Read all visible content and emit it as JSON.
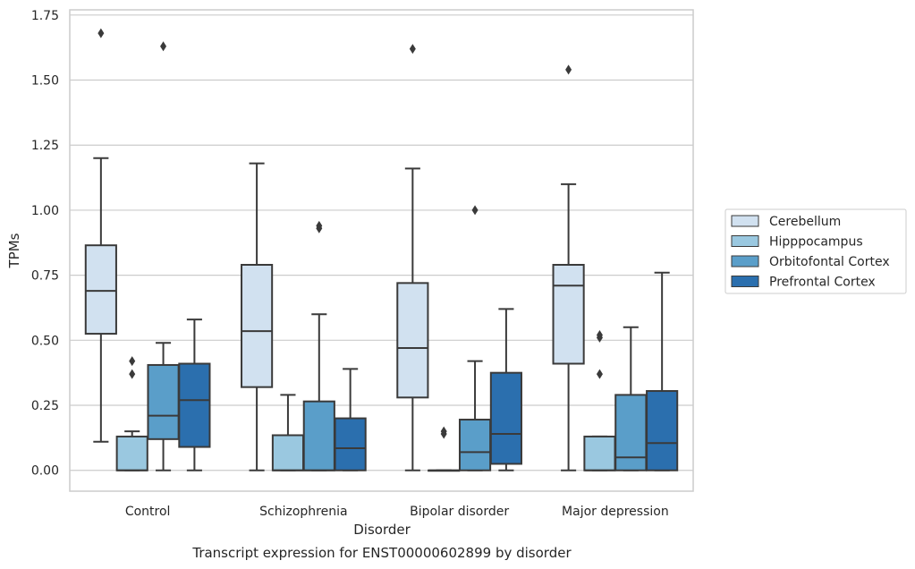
{
  "chart_data": {
    "type": "boxplot",
    "title": "",
    "caption": "Transcript expression for ENST00000602899 by disorder",
    "xlabel": "Disorder",
    "ylabel": "TPMs",
    "ylim": [
      -0.08,
      1.77
    ],
    "yticks": [
      0.0,
      0.25,
      0.5,
      0.75,
      1.0,
      1.25,
      1.5,
      1.75
    ],
    "ytick_labels": [
      "0.00",
      "0.25",
      "0.50",
      "0.75",
      "1.00",
      "1.25",
      "1.50",
      "1.75"
    ],
    "categories": [
      "Control",
      "Schizophrenia",
      "Bipolar disorder",
      "Major depression"
    ],
    "grid": "horizontal",
    "legend_position": "right",
    "series": [
      {
        "name": "Cerebellum",
        "color": "#d1e1f0",
        "boxes": [
          {
            "whislo": 0.11,
            "q1": 0.525,
            "med": 0.69,
            "q3": 0.865,
            "whishi": 1.2,
            "fliers": [
              1.68
            ]
          },
          {
            "whislo": 0.0,
            "q1": 0.32,
            "med": 0.535,
            "q3": 0.79,
            "whishi": 1.18,
            "fliers": []
          },
          {
            "whislo": 0.0,
            "q1": 0.28,
            "med": 0.47,
            "q3": 0.72,
            "whishi": 1.16,
            "fliers": [
              1.62
            ]
          },
          {
            "whislo": 0.0,
            "q1": 0.41,
            "med": 0.71,
            "q3": 0.79,
            "whishi": 1.1,
            "fliers": [
              1.54
            ]
          }
        ]
      },
      {
        "name": "Hipppocampus",
        "color": "#9ac8e0",
        "boxes": [
          {
            "whislo": 0.0,
            "q1": 0.0,
            "med": 0.0,
            "q3": 0.13,
            "whishi": 0.15,
            "fliers": [
              0.37,
              0.42
            ]
          },
          {
            "whislo": 0.0,
            "q1": 0.0,
            "med": 0.0,
            "q3": 0.135,
            "whishi": 0.29,
            "fliers": []
          },
          {
            "whislo": 0.0,
            "q1": 0.0,
            "med": 0.0,
            "q3": 0.0,
            "whishi": 0.0,
            "fliers": [
              0.14,
              0.15
            ]
          },
          {
            "whislo": 0.0,
            "q1": 0.0,
            "med": 0.0,
            "q3": 0.13,
            "whishi": 0.13,
            "fliers": [
              0.37,
              0.51,
              0.52
            ]
          }
        ]
      },
      {
        "name": "Orbitofontal Cortex",
        "color": "#5a9ec9",
        "boxes": [
          {
            "whislo": 0.0,
            "q1": 0.12,
            "med": 0.21,
            "q3": 0.405,
            "whishi": 0.49,
            "fliers": [
              1.63
            ]
          },
          {
            "whislo": 0.0,
            "q1": 0.0,
            "med": 0.0,
            "q3": 0.265,
            "whishi": 0.6,
            "fliers": [
              0.93,
              0.94
            ]
          },
          {
            "whislo": 0.0,
            "q1": 0.0,
            "med": 0.07,
            "q3": 0.195,
            "whishi": 0.42,
            "fliers": [
              1.0
            ]
          },
          {
            "whislo": 0.0,
            "q1": 0.0,
            "med": 0.05,
            "q3": 0.29,
            "whishi": 0.55,
            "fliers": []
          }
        ]
      },
      {
        "name": "Prefrontal Cortex",
        "color": "#2b6fae",
        "boxes": [
          {
            "whislo": 0.0,
            "q1": 0.09,
            "med": 0.27,
            "q3": 0.41,
            "whishi": 0.58,
            "fliers": []
          },
          {
            "whislo": 0.0,
            "q1": 0.0,
            "med": 0.085,
            "q3": 0.2,
            "whishi": 0.39,
            "fliers": []
          },
          {
            "whislo": 0.0,
            "q1": 0.025,
            "med": 0.14,
            "q3": 0.375,
            "whishi": 0.62,
            "fliers": []
          },
          {
            "whislo": 0.0,
            "q1": 0.0,
            "med": 0.105,
            "q3": 0.305,
            "whishi": 0.76,
            "fliers": []
          }
        ]
      }
    ],
    "colors": {
      "grid": "#cccccc",
      "axes_edge": "#cccccc",
      "box_edge": "#3a3a3a",
      "text": "#262626"
    }
  }
}
